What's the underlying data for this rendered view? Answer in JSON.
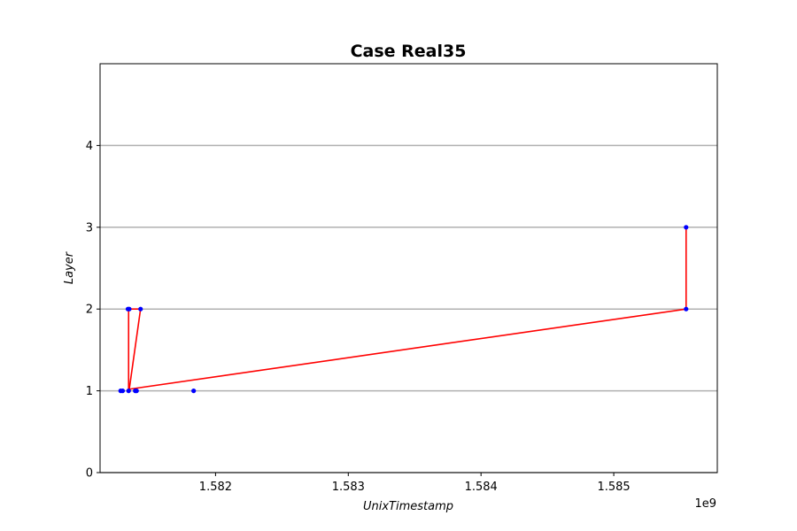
{
  "chart_data": {
    "type": "line",
    "title": "Case Real35",
    "xlabel": "UnixTimestamp",
    "ylabel": "Layer",
    "x_offset_label": "1e9",
    "xlim": [
      1581130000,
      1585780000
    ],
    "ylim": [
      0,
      5
    ],
    "x_ticks": [
      1582000000,
      1583000000,
      1584000000,
      1585000000
    ],
    "x_tick_labels": [
      "1.582",
      "1.583",
      "1.584",
      "1.585"
    ],
    "y_ticks": [
      0,
      1,
      2,
      3,
      4
    ],
    "y_tick_labels": [
      "0",
      "1",
      "2",
      "3",
      "4"
    ],
    "grid": "horizontal",
    "colors": {
      "line": "#ff0000",
      "points": "#0000ff",
      "grid": "#b0b0b0",
      "axes": "#000000"
    },
    "series": [
      {
        "style": "red-line",
        "x": [
          1581345000,
          1581345000,
          1581345000,
          1581345000,
          1581435000,
          1581350000,
          1585545000,
          1585545000
        ],
        "y": [
          1,
          2,
          1,
          2,
          2,
          1.02,
          2,
          3
        ]
      },
      {
        "style": "blue-points",
        "x": [
          1581285000,
          1581300000,
          1581340000,
          1581345000,
          1581350000,
          1581395000,
          1581405000,
          1581435000,
          1581835000,
          1585545000,
          1585545000
        ],
        "y": [
          1,
          1,
          2,
          1,
          2,
          1,
          1,
          2,
          1,
          2,
          3
        ]
      }
    ]
  }
}
